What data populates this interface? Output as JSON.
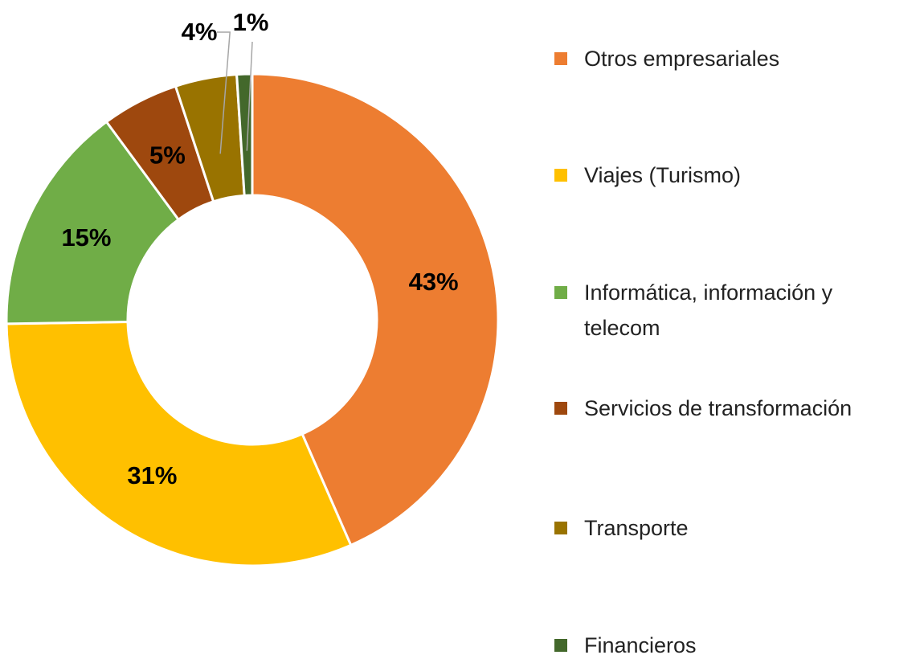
{
  "chart_data": {
    "type": "donut",
    "categories": [
      "Otros empresariales",
      "Viajes (Turismo)",
      "Informática, información y telecom",
      "Servicios de transformación",
      "Transporte",
      "Financieros"
    ],
    "values": [
      43,
      31,
      15,
      5,
      4,
      1
    ],
    "value_labels": [
      "43%",
      "31%",
      "15%",
      "5%",
      "4%",
      "1%"
    ],
    "colors": [
      "#ed7d31",
      "#ffc000",
      "#70ad47",
      "#9e480e",
      "#997300",
      "#43682b"
    ],
    "legend": "right"
  }
}
